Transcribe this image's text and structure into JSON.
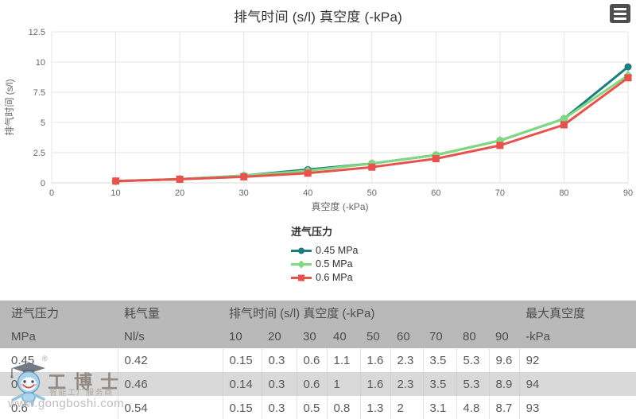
{
  "chart": {
    "title": "排气时间 (s/l) 真空度 (-kPa)",
    "export_menu_icon": "hamburger-icon"
  },
  "chart_data": {
    "type": "line",
    "x": [
      10,
      20,
      30,
      40,
      50,
      60,
      70,
      80,
      90
    ],
    "xlabel": "真空度 (-kPa)",
    "ylabel": "排气时间 (s/l)",
    "xlim": [
      0,
      90
    ],
    "ylim": [
      0,
      12.5
    ],
    "x_ticks": [
      0,
      10,
      20,
      30,
      40,
      50,
      60,
      70,
      80,
      90
    ],
    "y_ticks": [
      0,
      2.5,
      5,
      7.5,
      10,
      12.5
    ],
    "grid": true,
    "legend_title": "进气压力",
    "legend_position": "bottom-center",
    "series": [
      {
        "name": "0.45 MPa",
        "color": "#1e7c7e",
        "marker": "circle",
        "values": [
          0.15,
          0.3,
          0.6,
          1.1,
          1.6,
          2.3,
          3.5,
          5.3,
          9.6
        ]
      },
      {
        "name": "0.5 MPa",
        "color": "#80d880",
        "marker": "diamond",
        "values": [
          0.14,
          0.3,
          0.6,
          1,
          1.6,
          2.3,
          3.5,
          5.3,
          8.9
        ]
      },
      {
        "name": "0.6 MPa",
        "color": "#e8524c",
        "marker": "square",
        "values": [
          0.15,
          0.3,
          0.5,
          0.8,
          1.3,
          2,
          3.1,
          4.8,
          8.7
        ]
      }
    ]
  },
  "table": {
    "header_row1": [
      {
        "label": "进气压力",
        "span": 1
      },
      {
        "label": "耗气量",
        "span": 1
      },
      {
        "label": "排气时间 (s/l) 真空度 (-kPa)",
        "span": 9
      },
      {
        "label": "最大真空度",
        "span": 1
      }
    ],
    "header_row2": [
      "MPa",
      "Nl/s",
      "10",
      "20",
      "30",
      "40",
      "50",
      "60",
      "70",
      "80",
      "90",
      "-kPa"
    ],
    "rows": [
      [
        "0.45",
        "0.42",
        "0.15",
        "0.3",
        "0.6",
        "1.1",
        "1.6",
        "2.3",
        "3.5",
        "5.3",
        "9.6",
        "92"
      ],
      [
        "0.5",
        "0.46",
        "0.14",
        "0.3",
        "0.6",
        "1",
        "1.6",
        "2.3",
        "3.5",
        "5.3",
        "8.9",
        "94"
      ],
      [
        "0.6",
        "0.54",
        "0.15",
        "0.3",
        "0.5",
        "0.8",
        "1.3",
        "2",
        "3.1",
        "4.8",
        "8.7",
        "93"
      ]
    ]
  },
  "watermark": {
    "brand": "工博士",
    "registered_mark": "®",
    "tagline": "智能工厂服务商",
    "url": "www.gongboshi.com"
  }
}
